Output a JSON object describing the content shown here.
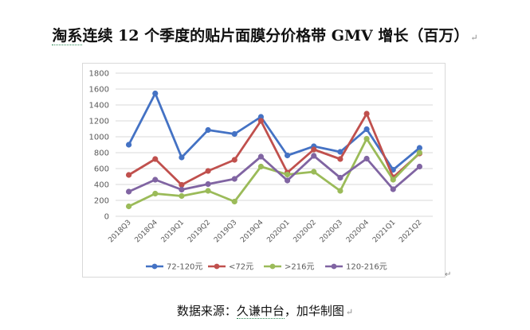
{
  "title": {
    "prefix": "淘系",
    "rest": "连续 12 个季度的贴片面膜分价格带 GMV 增长（百万）",
    "mark": "↵"
  },
  "source": {
    "prefix": "数据来源：",
    "squiggle": "久谦中台",
    "suffix": "，加华制图",
    "mark": "↵"
  },
  "end_mark": "↵",
  "chart_data": {
    "type": "line",
    "title": "",
    "xlabel": "",
    "ylabel": "",
    "categories": [
      "2018Q3",
      "2018Q4",
      "2019Q1",
      "2019Q2",
      "2019Q3",
      "2019Q4",
      "2020Q1",
      "2020Q2",
      "2020Q3",
      "2020Q4",
      "2021Q1",
      "2021Q2"
    ],
    "ylim": [
      0,
      1800
    ],
    "yticks": [
      0,
      200,
      400,
      600,
      800,
      1000,
      1200,
      1400,
      1600,
      1800
    ],
    "grid": true,
    "legend": "bottom",
    "series": [
      {
        "name": "72-120元",
        "color": "#4472c4",
        "values": [
          900,
          1545,
          740,
          1085,
          1035,
          1250,
          765,
          880,
          810,
          1095,
          585,
          860
        ]
      },
      {
        "name": "<72元",
        "color": "#c0504d",
        "values": [
          520,
          720,
          395,
          570,
          710,
          1200,
          550,
          840,
          720,
          1290,
          490,
          790
        ]
      },
      {
        "name": ">216元",
        "color": "#9bbb59",
        "values": [
          125,
          285,
          255,
          320,
          185,
          625,
          525,
          560,
          320,
          975,
          460,
          800
        ]
      },
      {
        "name": "120-216元",
        "color": "#8064a2",
        "values": [
          310,
          460,
          335,
          405,
          470,
          750,
          450,
          760,
          485,
          725,
          340,
          625
        ]
      }
    ]
  }
}
